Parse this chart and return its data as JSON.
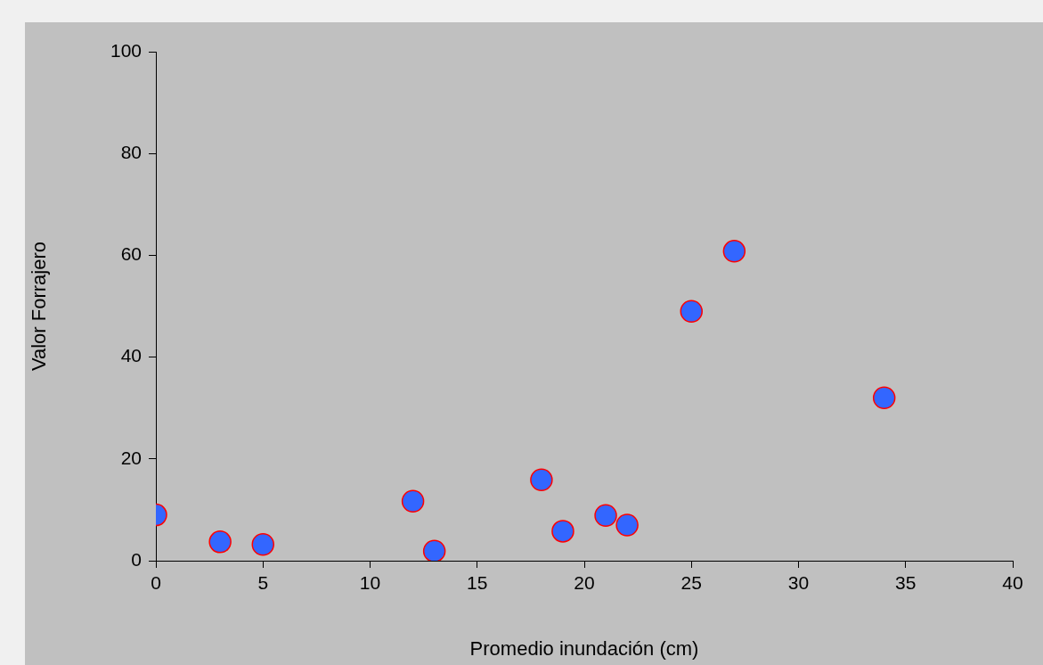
{
  "chart_data": {
    "type": "scatter",
    "xlabel": "Promedio inundación (cm)",
    "ylabel": "Valor Forrajero",
    "x": [
      0,
      3,
      5,
      12,
      13,
      18,
      19,
      21,
      22,
      25,
      27,
      34
    ],
    "series": [
      {
        "color": "#3366ff",
        "values": [
          9,
          3.7,
          3.2,
          11.7,
          1.9,
          15.9,
          5.8,
          8.9,
          7,
          49,
          60.8,
          32
        ]
      }
    ],
    "xlim": [
      0,
      40
    ],
    "xticks": [
      0,
      5,
      10,
      15,
      20,
      25,
      30,
      35,
      40
    ],
    "ylim": [
      0,
      100
    ],
    "yticks": [
      0,
      20,
      40,
      60,
      80,
      100
    ],
    "marker": "circle",
    "legend": false
  }
}
